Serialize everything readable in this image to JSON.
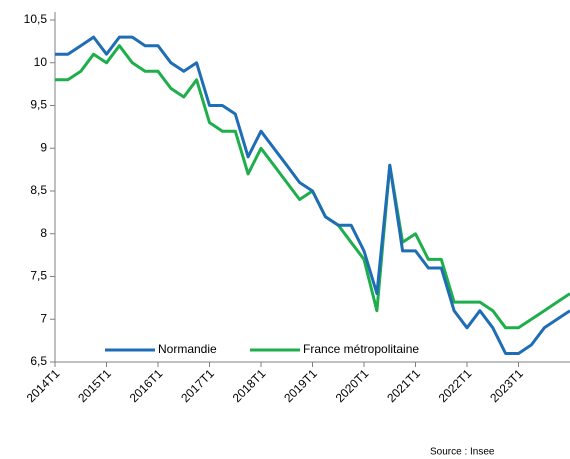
{
  "chart_data": {
    "type": "line",
    "categories": [
      "2014T1",
      null,
      null,
      null,
      "2015T1",
      null,
      null,
      null,
      "2016T1",
      null,
      null,
      null,
      "2017T1",
      null,
      null,
      null,
      "2018T1",
      null,
      null,
      null,
      "2019T1",
      null,
      null,
      null,
      "2020T1",
      null,
      null,
      null,
      "2021T1",
      null,
      null,
      null,
      "2022T1",
      null,
      null,
      null,
      "2023T1",
      null,
      null,
      null,
      null
    ],
    "series": [
      {
        "name": "Normandie",
        "color": "#1f6db4",
        "values": [
          10.1,
          10.1,
          10.2,
          10.3,
          10.1,
          10.3,
          10.3,
          10.2,
          10.2,
          10.0,
          9.9,
          10.0,
          9.5,
          9.5,
          9.4,
          8.9,
          9.2,
          9.0,
          8.8,
          8.6,
          8.5,
          8.2,
          8.1,
          8.1,
          7.8,
          7.3,
          8.8,
          7.8,
          7.8,
          7.6,
          7.6,
          7.1,
          6.9,
          7.1,
          6.9,
          6.6,
          6.6,
          6.7,
          6.9,
          7.0,
          7.1
        ]
      },
      {
        "name": "France métropolitaine",
        "color": "#1fae4c",
        "values": [
          9.8,
          9.8,
          9.9,
          10.1,
          10.0,
          10.2,
          10.0,
          9.9,
          9.9,
          9.7,
          9.6,
          9.8,
          9.3,
          9.2,
          9.2,
          8.7,
          9.0,
          8.8,
          8.6,
          8.4,
          8.5,
          8.2,
          8.1,
          7.9,
          7.7,
          7.1,
          8.8,
          7.9,
          8.0,
          7.7,
          7.7,
          7.2,
          7.2,
          7.2,
          7.1,
          6.9,
          6.9,
          7.0,
          7.1,
          7.2,
          7.3
        ]
      }
    ],
    "ylim": [
      6.5,
      10.5
    ],
    "yticks": [
      {
        "value": 6.5,
        "label": "6,5"
      },
      7,
      {
        "value": 7.5,
        "label": "7,5"
      },
      8,
      {
        "value": 8.5,
        "label": "8,5"
      },
      9,
      {
        "value": 9.5,
        "label": "9,5"
      },
      10,
      {
        "value": 10.5,
        "label": "10,5"
      }
    ],
    "legend": "bottom",
    "source": "Source : Insee"
  }
}
